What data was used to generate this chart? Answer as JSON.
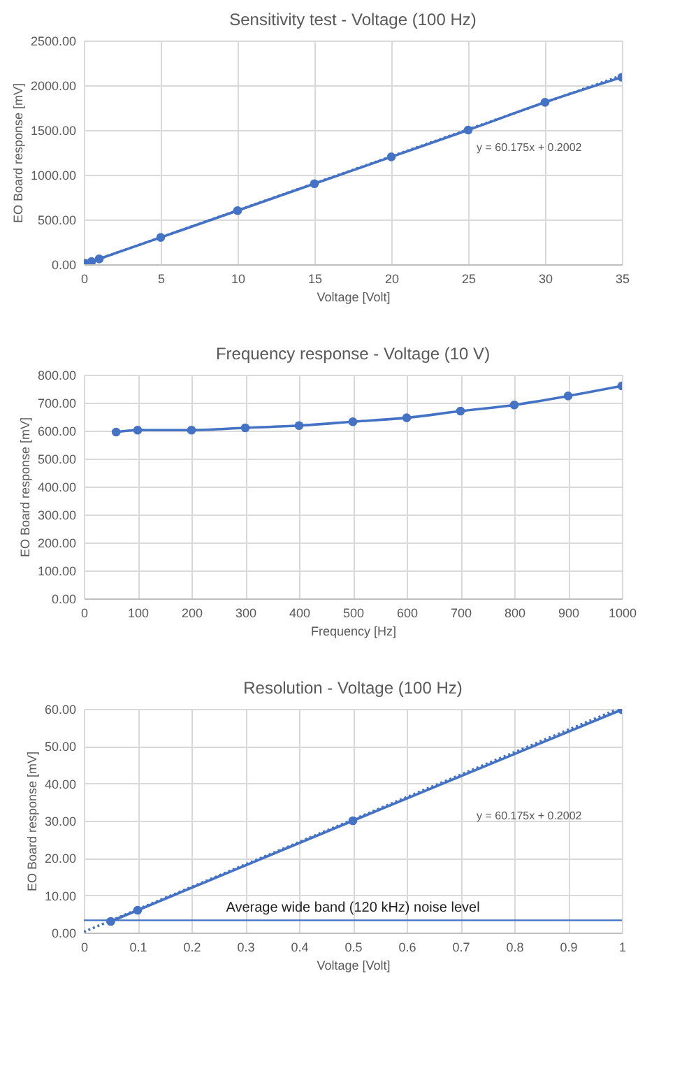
{
  "chart_data": [
    {
      "type": "line",
      "title": "Sensitivity test - Voltage (100 Hz)",
      "xlabel": "Voltage [Volt]",
      "ylabel": "EO Board response [mV]",
      "series": [
        {
          "color": "#4472c4",
          "x": [
            0,
            0.1,
            0.5,
            1,
            5,
            10,
            15,
            20,
            25,
            30,
            35
          ],
          "values": [
            0,
            10,
            30,
            60,
            300,
            600,
            900,
            1200,
            1500,
            1810,
            2090
          ]
        },
        {
          "type": "line",
          "color": "#4472c4",
          "line_style": "dotted",
          "marker": "none",
          "x": [
            0,
            35
          ],
          "values": [
            0,
            2110
          ]
        }
      ],
      "xlim": [
        0,
        35
      ],
      "xticks": [
        0,
        5,
        10,
        15,
        20,
        25,
        30,
        35
      ],
      "ylim": [
        0,
        2500
      ],
      "yticks": [
        {
          "value": 0,
          "label": "0.00"
        },
        {
          "value": 500,
          "label": "500.00"
        },
        {
          "value": 1000,
          "label": "1000.00"
        },
        {
          "value": 1500,
          "label": "1500.00"
        },
        {
          "value": 2000,
          "label": "2000.00"
        },
        {
          "value": 2500,
          "label": "2500.00"
        }
      ],
      "annotations": [
        "y = 60.175x + 0.2002"
      ],
      "grid": true,
      "marker": "circle"
    },
    {
      "type": "line",
      "title": "Frequency response - Voltage (10 V)",
      "xlabel": "Frequency [Hz]",
      "ylabel": "EO Board response [mV]",
      "series": [
        {
          "color": "#4472c4",
          "x": [
            60,
            100,
            200,
            300,
            400,
            500,
            600,
            700,
            800,
            900,
            1000
          ],
          "values": [
            595,
            602,
            602,
            610,
            618,
            632,
            646,
            670,
            692,
            724,
            760
          ]
        }
      ],
      "xlim": [
        0,
        1000
      ],
      "xticks": [
        0,
        100,
        200,
        300,
        400,
        500,
        600,
        700,
        800,
        900,
        {
          "value": 1000,
          "label": "1000"
        }
      ],
      "ylim": [
        0,
        800
      ],
      "yticks": [
        {
          "value": 0,
          "label": "0.00"
        },
        {
          "value": 100,
          "label": "100.00"
        },
        {
          "value": 200,
          "label": "200.00"
        },
        {
          "value": 300,
          "label": "300.00"
        },
        {
          "value": 400,
          "label": "400.00"
        },
        {
          "value": 500,
          "label": "500.00"
        },
        {
          "value": 600,
          "label": "600.00"
        },
        {
          "value": 700,
          "label": "700.00"
        },
        {
          "value": 800,
          "label": "800.00"
        }
      ],
      "grid": true,
      "marker": "circle"
    },
    {
      "type": "line",
      "title": "Resolution - Voltage (100 Hz)",
      "xlabel": "Voltage [Volt]",
      "ylabel": "EO Board response [mV]",
      "series": [
        {
          "color": "#4472c4",
          "x": [
            0.05,
            0.1,
            0.5,
            1
          ],
          "values": [
            3,
            6,
            30,
            59.8
          ]
        },
        {
          "type": "line",
          "color": "#4472c4",
          "line_style": "dotted",
          "marker": "none",
          "x": [
            0,
            0.99
          ],
          "values": [
            0.2,
            59.8
          ]
        }
      ],
      "xlim": [
        0,
        1
      ],
      "xticks": [
        0,
        0.1,
        0.2,
        0.3,
        0.4,
        0.5,
        0.6,
        0.7,
        0.8,
        0.9,
        1
      ],
      "ylim": [
        0,
        60
      ],
      "yticks": [
        {
          "value": 0,
          "label": "0.00"
        },
        {
          "value": 10,
          "label": "10.00"
        },
        {
          "value": 20,
          "label": "20.00"
        },
        {
          "value": 30,
          "label": "30.00"
        },
        {
          "value": 40,
          "label": "40.00"
        },
        {
          "value": 50,
          "label": "50.00"
        },
        {
          "value": 60,
          "label": "60.00"
        }
      ],
      "ref_lines": [
        {
          "axis": "y",
          "value": 3.3,
          "label": "Average wide band (120 kHz) noise level",
          "color": "#4472c4"
        }
      ],
      "annotations": [
        "y = 60.175x + 0.2002"
      ],
      "grid": true,
      "marker": "circle"
    }
  ]
}
